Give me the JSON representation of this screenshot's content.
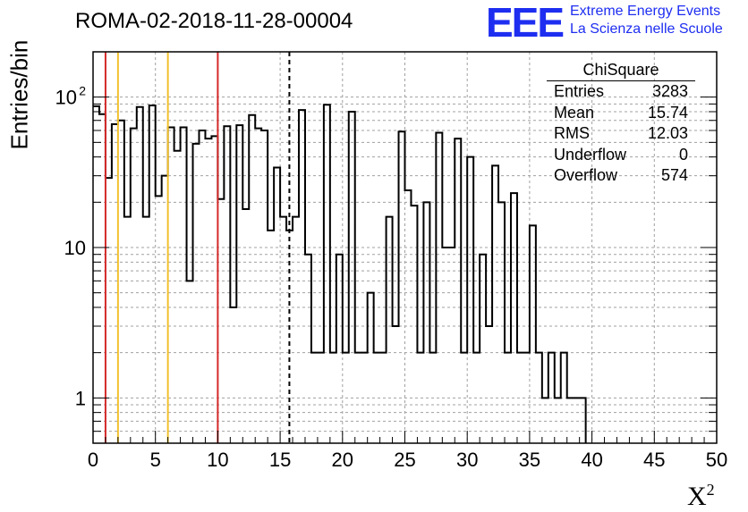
{
  "title": "ROMA-02-2018-11-28-00004",
  "logo": {
    "text": "EEE",
    "line1": "Extreme Energy Events",
    "line2": "La Scienza nelle Scuole",
    "color": "#1e2ef0"
  },
  "stats": {
    "title": "ChiSquare",
    "rows": [
      {
        "label": "Entries",
        "value": "3283"
      },
      {
        "label": "Mean",
        "value": "15.74"
      },
      {
        "label": "RMS",
        "value": "12.03"
      },
      {
        "label": "Underflow",
        "value": "0"
      },
      {
        "label": "Overflow",
        "value": "574"
      }
    ]
  },
  "chart_data": {
    "type": "histogram",
    "title": "ROMA-02-2018-11-28-00004",
    "xlabel": "X²",
    "ylabel": "Entries/bin",
    "x_scale": "linear",
    "y_scale": "log",
    "xlim": [
      0,
      50
    ],
    "ylim": [
      0.5,
      200
    ],
    "bin_width": 0.5,
    "x_ticks": [
      "0",
      "5",
      "10",
      "15",
      "20",
      "25",
      "30",
      "35",
      "40",
      "45",
      "50"
    ],
    "y_ticks": [
      {
        "value": 1,
        "label": "1"
      },
      {
        "value": 10,
        "label": "10"
      },
      {
        "value": 100,
        "label": "10",
        "exponent": "2"
      }
    ],
    "values": [
      87,
      77,
      29,
      66,
      70,
      16,
      62,
      86,
      16,
      88,
      22,
      30,
      63,
      44,
      63,
      6,
      49,
      60,
      53,
      55,
      21,
      64,
      4,
      65,
      18,
      76,
      62,
      60,
      13,
      34,
      16,
      13,
      16,
      82,
      9,
      2,
      2,
      89,
      2,
      9,
      2,
      80,
      2,
      2,
      5,
      2,
      2,
      16,
      3,
      59,
      24,
      19,
      2,
      20,
      2,
      58,
      10,
      10,
      53,
      2,
      40,
      2,
      9,
      3,
      35,
      20,
      2,
      23,
      2,
      2,
      14,
      2,
      1,
      2,
      1,
      2,
      1,
      1,
      1
    ],
    "values_continued": [],
    "vertical_lines": [
      {
        "x": 1,
        "color": "#d42a2a",
        "style": "solid"
      },
      {
        "x": 2,
        "color": "#f2c12e",
        "style": "solid"
      },
      {
        "x": 6,
        "color": "#f2c12e",
        "style": "solid"
      },
      {
        "x": 10,
        "color": "#d42a2a",
        "style": "solid"
      },
      {
        "x": 15.74,
        "color": "#000000",
        "style": "dashed"
      }
    ],
    "grid": true
  }
}
